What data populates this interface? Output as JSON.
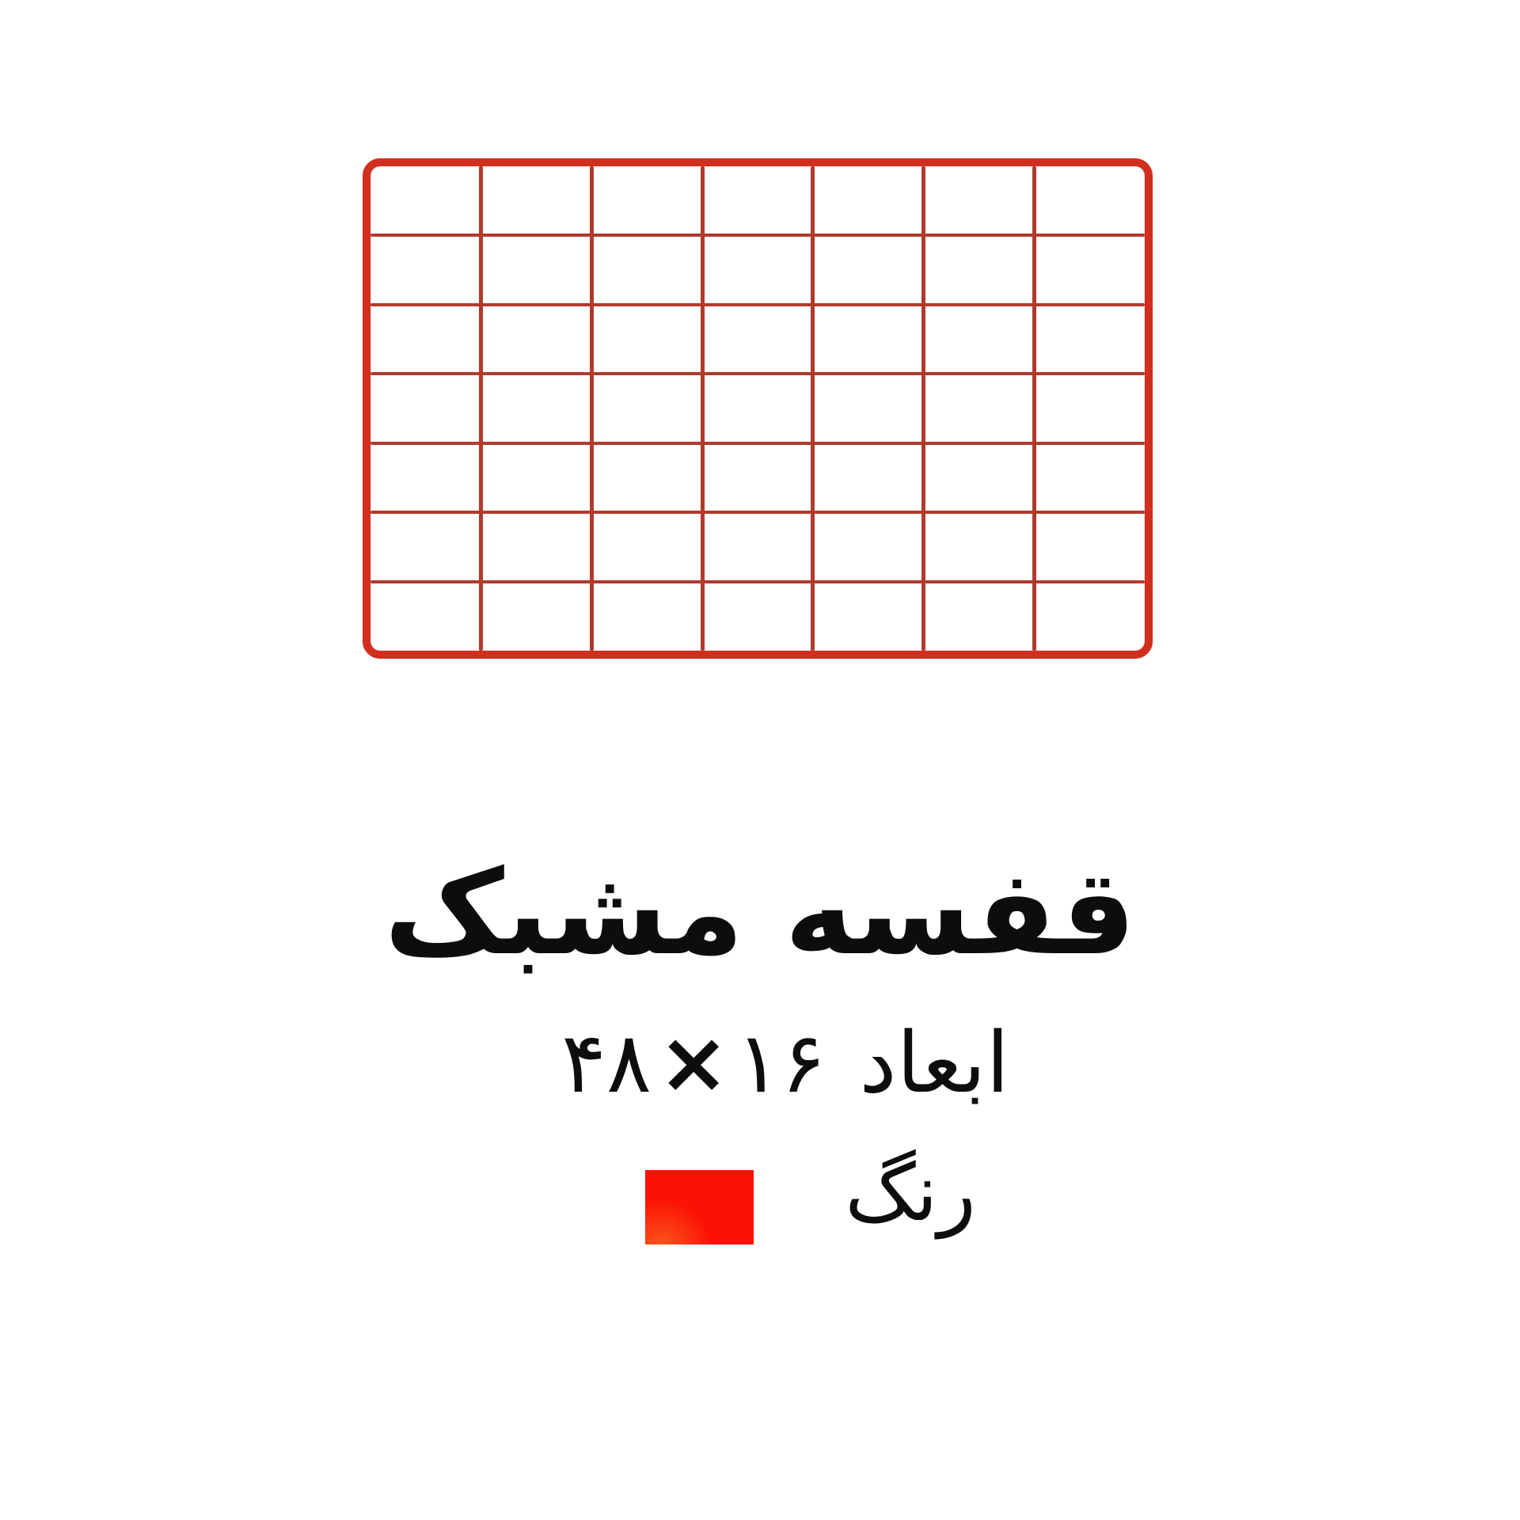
{
  "page": {
    "background": "#ffffff"
  },
  "product_image": {
    "type": "wire-mesh-grid-shelf",
    "grid_columns": 7,
    "grid_rows": 7,
    "frame_color": "#d02e1e",
    "wire_color": "#b13a2d"
  },
  "title": "قفسه مشبک",
  "size_line": {
    "label": "ابعاد",
    "width_value": "۴۸",
    "times_sign": "×",
    "height_value": "۱۶"
  },
  "color_line": {
    "label": "رنگ",
    "swatch_color": "#fb1205"
  },
  "text_color": "#0d0d0d"
}
